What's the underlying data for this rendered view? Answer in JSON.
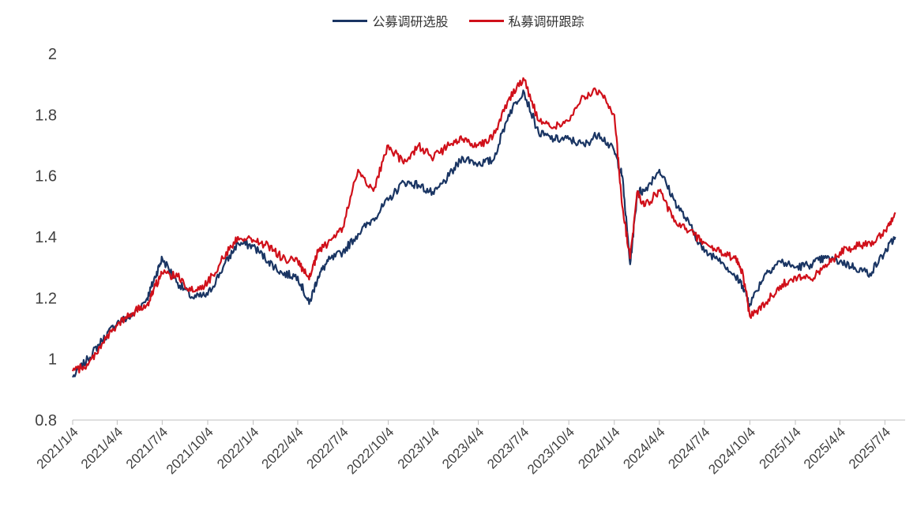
{
  "legend": {
    "public": "公募调研选股",
    "private": "私募调研跟踪"
  },
  "chart_data": {
    "type": "line",
    "title": "",
    "xlabel": "",
    "ylabel": "",
    "ylim": [
      0.8,
      2.0
    ],
    "yticks": [
      "0.8",
      "1",
      "1.2",
      "1.4",
      "1.6",
      "1.8",
      "2"
    ],
    "xticks": [
      "2021/1/4",
      "2021/4/4",
      "2021/7/4",
      "2021/10/4",
      "2022/1/4",
      "2022/4/4",
      "2022/7/4",
      "2022/10/4",
      "2023/1/4",
      "2023/4/4",
      "2023/7/4",
      "2023/10/4",
      "2024/1/4",
      "2024/4/4",
      "2024/7/4",
      "2024/10/4",
      "2025/1/4",
      "2025/4/4",
      "2025/7/4"
    ],
    "grid": false,
    "legend_position": "top",
    "colors": {
      "public": "#1a3563",
      "private": "#d0101a"
    },
    "x": [
      "2021/1/4",
      "2021/2/4",
      "2021/3/4",
      "2021/4/4",
      "2021/5/4",
      "2021/6/4",
      "2021/6/20",
      "2021/7/4",
      "2021/8/4",
      "2021/9/4",
      "2021/10/4",
      "2021/11/4",
      "2021/12/4",
      "2022/1/4",
      "2022/2/4",
      "2022/3/4",
      "2022/4/4",
      "2022/4/27",
      "2022/5/15",
      "2022/6/4",
      "2022/7/4",
      "2022/8/4",
      "2022/9/4",
      "2022/10/4",
      "2022/11/4",
      "2022/12/4",
      "2023/1/4",
      "2023/2/4",
      "2023/3/4",
      "2023/4/4",
      "2023/5/4",
      "2023/6/4",
      "2023/7/4",
      "2023/8/4",
      "2023/9/4",
      "2023/10/4",
      "2023/11/4",
      "2023/12/4",
      "2024/1/4",
      "2024/1/20",
      "2024/2/5",
      "2024/2/20",
      "2024/3/4",
      "2024/4/4",
      "2024/5/4",
      "2024/6/4",
      "2024/7/4",
      "2024/8/4",
      "2024/9/4",
      "2024/9/20",
      "2024/10/4",
      "2024/11/4",
      "2024/12/4",
      "2025/1/4",
      "2025/2/4",
      "2025/3/4",
      "2025/4/4",
      "2025/5/4",
      "2025/6/4",
      "2025/7/4",
      "2025/7/25"
    ],
    "series": [
      {
        "name": "公募调研选股",
        "values": [
          0.94,
          1.0,
          1.06,
          1.12,
          1.14,
          1.2,
          1.27,
          1.33,
          1.25,
          1.2,
          1.21,
          1.3,
          1.38,
          1.37,
          1.32,
          1.28,
          1.27,
          1.18,
          1.27,
          1.32,
          1.35,
          1.41,
          1.46,
          1.52,
          1.58,
          1.57,
          1.54,
          1.6,
          1.66,
          1.64,
          1.65,
          1.8,
          1.88,
          1.74,
          1.72,
          1.72,
          1.7,
          1.74,
          1.68,
          1.6,
          1.31,
          1.55,
          1.55,
          1.62,
          1.52,
          1.44,
          1.35,
          1.33,
          1.27,
          1.24,
          1.18,
          1.28,
          1.32,
          1.3,
          1.31,
          1.33,
          1.32,
          1.3,
          1.28,
          1.35,
          1.4
        ]
      },
      {
        "name": "私募调研跟踪",
        "values": [
          0.96,
          0.98,
          1.05,
          1.11,
          1.15,
          1.18,
          1.24,
          1.28,
          1.27,
          1.22,
          1.25,
          1.33,
          1.4,
          1.39,
          1.37,
          1.33,
          1.32,
          1.26,
          1.35,
          1.38,
          1.43,
          1.62,
          1.55,
          1.7,
          1.64,
          1.7,
          1.66,
          1.7,
          1.72,
          1.7,
          1.73,
          1.85,
          1.92,
          1.78,
          1.76,
          1.78,
          1.86,
          1.88,
          1.8,
          1.5,
          1.33,
          1.55,
          1.5,
          1.55,
          1.45,
          1.42,
          1.38,
          1.35,
          1.33,
          1.28,
          1.14,
          1.18,
          1.24,
          1.27,
          1.26,
          1.3,
          1.35,
          1.37,
          1.38,
          1.42,
          1.48
        ]
      }
    ]
  }
}
